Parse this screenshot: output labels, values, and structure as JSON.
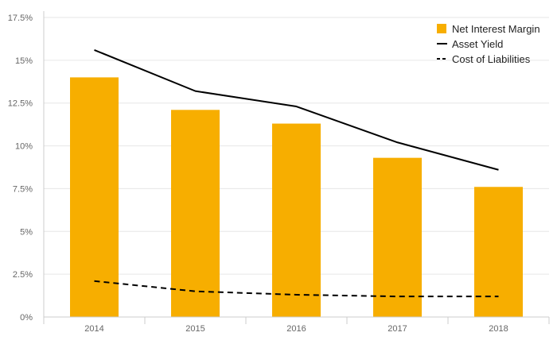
{
  "chart_data": {
    "type": "bar",
    "categories": [
      "2014",
      "2015",
      "2016",
      "2017",
      "2018"
    ],
    "series": [
      {
        "name": "Net Interest Margin",
        "kind": "bar",
        "color": "#F7AE00",
        "values": [
          14.0,
          12.1,
          11.3,
          9.3,
          7.6
        ]
      },
      {
        "name": "Asset Yield",
        "kind": "line",
        "style": "solid",
        "color": "#000000",
        "values": [
          15.6,
          13.2,
          12.3,
          10.2,
          8.6
        ]
      },
      {
        "name": "Cost of Liabilities",
        "kind": "line",
        "style": "dashed",
        "color": "#000000",
        "values": [
          2.1,
          1.5,
          1.3,
          1.2,
          1.2
        ]
      }
    ],
    "ylim": [
      0,
      17.5
    ],
    "yticks": [
      "0%",
      "2.5%",
      "5%",
      "7.5%",
      "10%",
      "12.5%",
      "15%",
      "17.5%"
    ],
    "xlabel": "",
    "ylabel": "",
    "grid": true,
    "legend_position": "top-right"
  }
}
